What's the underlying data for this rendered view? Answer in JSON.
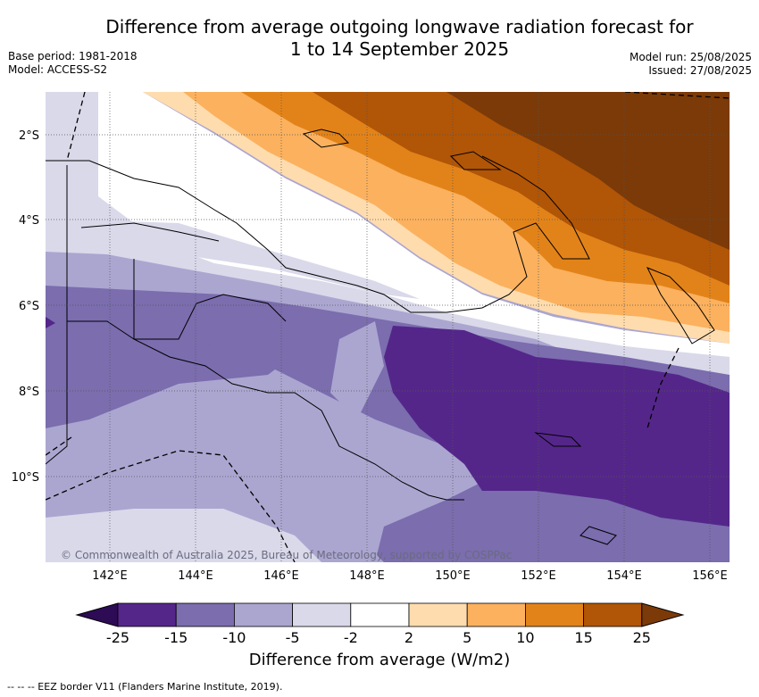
{
  "title_line1": "Difference from average outgoing longwave radiation forecast for",
  "title_line2": "1 to 14 September 2025",
  "base_period": "Base period: 1981-2018",
  "model": "Model: ACCESS-S2",
  "model_run": "Model run: 25/08/2025",
  "issued": "Issued: 27/08/2025",
  "copyright": "© Commonwealth of Australia 2025, Bureau of Meteorology, supported by COSPPac",
  "lon_ticks": [
    "142°E",
    "144°E",
    "146°E",
    "148°E",
    "150°E",
    "152°E",
    "154°E",
    "156°E"
  ],
  "lat_ticks": [
    "2°S",
    "4°S",
    "6°S",
    "8°S",
    "10°S"
  ],
  "colorbar": {
    "labels": [
      "-25",
      "-15",
      "-10",
      "-5",
      "-2",
      "2",
      "5",
      "10",
      "15",
      "25"
    ],
    "colors": [
      "#2e0b55",
      "#54268a",
      "#7b6dae",
      "#aba6d0",
      "#d9d9ea",
      "#ffffff",
      "#ffdcae",
      "#fbb15e",
      "#e28319",
      "#b15506",
      "#7b3a08"
    ],
    "title": "Difference from average (W/m2)"
  },
  "footnote": "--  --  -- EEZ border V11 (Flanders Marine Institute, 2019)."
}
